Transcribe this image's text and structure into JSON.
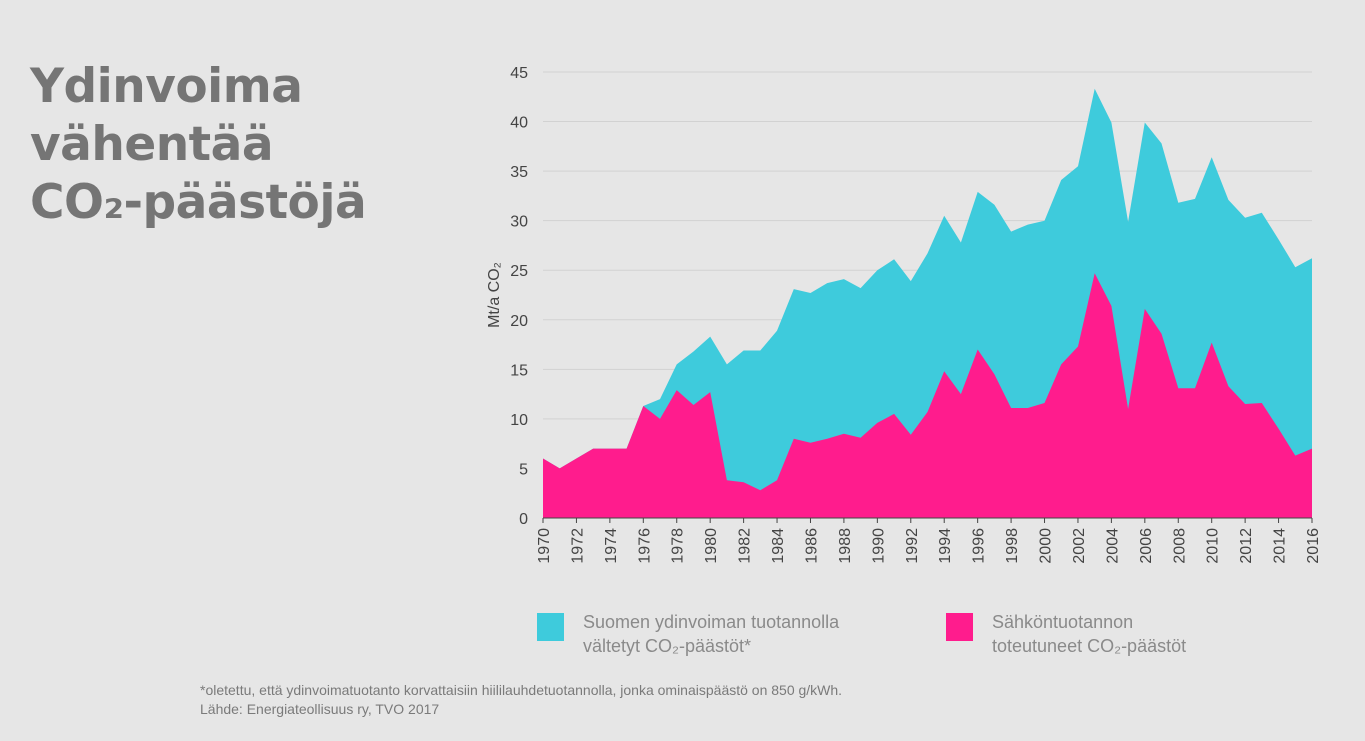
{
  "title": {
    "line1": "Ydinvoima",
    "line2": "vähentää",
    "line3": "CO₂-päästöjä"
  },
  "legend": {
    "avoided": {
      "line1": "Suomen ydinvoiman tuotannolla",
      "line2": "vältetyt CO₂-päästöt*",
      "color": "#3ecbdc"
    },
    "actual": {
      "line1": "Sähköntuotannon",
      "line2": "toteutuneet CO₂-päästöt",
      "color": "#ff1c8d"
    }
  },
  "footnote": {
    "note": "*oletettu, että ydinvoimatuotanto korvattaisiin hiililauhdetuotannolla, jonka ominaispäästö  on 850 g/kWh.",
    "source": "Lähde: Energiateollisuus ry, TVO 2017"
  },
  "chart_data": {
    "type": "area",
    "stacked": false,
    "ylabel": "Mt/a CO₂",
    "ylim": [
      0,
      45
    ],
    "yticks": [
      0,
      5,
      10,
      15,
      20,
      25,
      30,
      35,
      40,
      45
    ],
    "xlim": [
      1970,
      2016
    ],
    "xticks": [
      1970,
      1972,
      1974,
      1976,
      1978,
      1980,
      1982,
      1984,
      1986,
      1988,
      1990,
      1992,
      1994,
      1996,
      1998,
      2000,
      2002,
      2004,
      2006,
      2008,
      2010,
      2012,
      2014,
      2016
    ],
    "grid": true,
    "x": [
      1970,
      1971,
      1972,
      1973,
      1974,
      1975,
      1976,
      1977,
      1978,
      1979,
      1980,
      1981,
      1982,
      1983,
      1984,
      1985,
      1986,
      1987,
      1988,
      1989,
      1990,
      1991,
      1992,
      1993,
      1994,
      1995,
      1996,
      1997,
      1998,
      1999,
      2000,
      2001,
      2002,
      2003,
      2004,
      2005,
      2006,
      2007,
      2008,
      2009,
      2010,
      2011,
      2012,
      2013,
      2014,
      2015,
      2016
    ],
    "series": [
      {
        "name": "Suomen ydinvoiman tuotannolla vältetyt CO₂-päästöt*",
        "color": "#3ecbdc",
        "values": [
          6.0,
          5.0,
          6.0,
          7.0,
          7.0,
          7.0,
          11.3,
          12.0,
          15.5,
          16.8,
          18.3,
          15.5,
          16.9,
          16.9,
          18.9,
          23.1,
          22.7,
          23.7,
          24.1,
          23.2,
          25.0,
          26.1,
          23.9,
          26.7,
          30.5,
          27.8,
          32.9,
          31.6,
          28.9,
          29.6,
          30.0,
          34.1,
          35.5,
          43.3,
          39.9,
          29.9,
          39.9,
          37.8,
          31.8,
          32.2,
          36.4,
          32.1,
          30.3,
          30.8,
          28.1,
          25.3,
          26.2
        ]
      },
      {
        "name": "Sähköntuotannon toteutuneet CO₂-päästöt",
        "color": "#ff1c8d",
        "values": [
          6.0,
          5.0,
          6.0,
          7.0,
          7.0,
          7.0,
          11.3,
          10.0,
          12.9,
          11.4,
          12.7,
          3.8,
          3.6,
          2.8,
          3.8,
          8.0,
          7.6,
          8.0,
          8.5,
          8.1,
          9.6,
          10.5,
          8.4,
          10.7,
          14.8,
          12.5,
          17.0,
          14.5,
          11.1,
          11.1,
          11.6,
          15.5,
          17.3,
          24.7,
          21.4,
          11.0,
          21.1,
          18.6,
          13.1,
          13.1,
          17.7,
          13.3,
          11.5,
          11.6,
          9.0,
          6.3,
          7.0
        ]
      }
    ]
  }
}
